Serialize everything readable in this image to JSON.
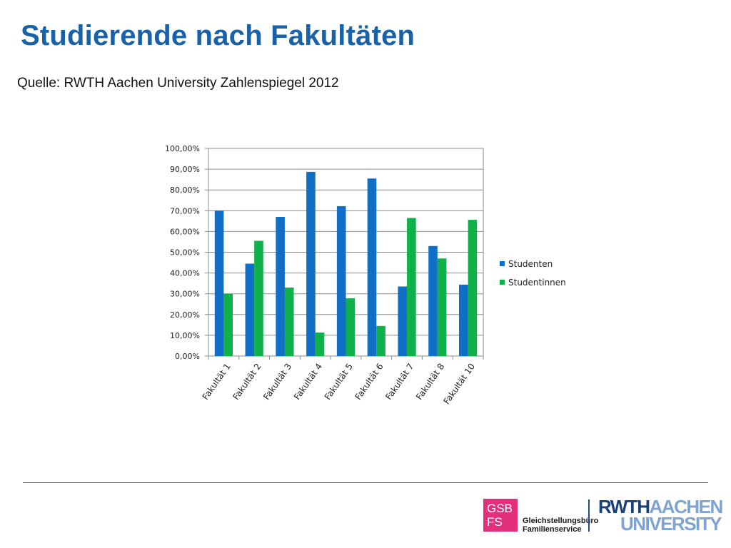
{
  "slide": {
    "title": "Studierende nach Fakultäten",
    "source": "Quelle: RWTH Aachen University Zahlenspiegel 2012"
  },
  "logos": {
    "gsb_line1": "GSB",
    "gsb_line2": "FS",
    "gsb_text_line1": "Gleichstellungsbüro",
    "gsb_text_line2": "Familienservice",
    "rwth_part1": "RWTH",
    "rwth_part2": "AACHEN",
    "rwth_part3": "UNIVERSITY",
    "gsb_color": "#e2317a",
    "rwth_dark": "#1a3f7a",
    "rwth_light": "#7fa3cf"
  },
  "chart_data": {
    "type": "bar",
    "categories": [
      "Fakultät 1",
      "Fakultät 2",
      "Fakultät 3",
      "Fakultät 4",
      "Fakultät 5",
      "Fakultät 6",
      "Fakultät 7",
      "Fakultät 8",
      "Fakultät 10"
    ],
    "series": [
      {
        "name": "Studenten",
        "color": "#0f6fc6",
        "values": [
          70.0,
          44.5,
          67.0,
          88.7,
          72.2,
          85.5,
          33.5,
          53.0,
          34.4
        ]
      },
      {
        "name": "Studentinnen",
        "color": "#10b04a",
        "values": [
          30.0,
          55.5,
          33.0,
          11.3,
          27.8,
          14.5,
          66.5,
          47.0,
          65.6
        ]
      }
    ],
    "yticks": [
      "0,00%",
      "10,00%",
      "20,00%",
      "30,00%",
      "40,00%",
      "50,00%",
      "60,00%",
      "70,00%",
      "80,00%",
      "90,00%",
      "100,00%"
    ],
    "ylim": [
      0,
      100
    ],
    "grid": true,
    "legend_position": "right"
  }
}
